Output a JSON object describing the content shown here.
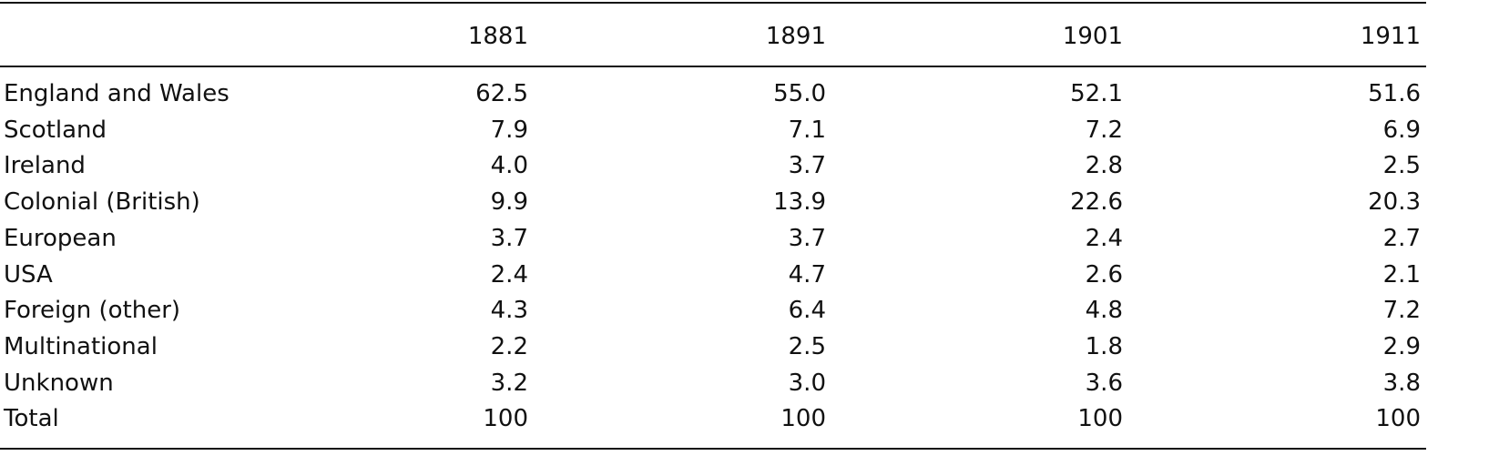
{
  "table": {
    "columns": [
      "1881",
      "1891",
      "1901",
      "1911"
    ],
    "rows": [
      {
        "label": "England and Wales",
        "values": [
          "62.5",
          "55.0",
          "52.1",
          "51.6"
        ]
      },
      {
        "label": "Scotland",
        "values": [
          "7.9",
          "7.1",
          "7.2",
          "6.9"
        ]
      },
      {
        "label": "Ireland",
        "values": [
          "4.0",
          "3.7",
          "2.8",
          "2.5"
        ]
      },
      {
        "label": "Colonial (British)",
        "values": [
          "9.9",
          "13.9",
          "22.6",
          "20.3"
        ]
      },
      {
        "label": "European",
        "values": [
          "3.7",
          "3.7",
          "2.4",
          "2.7"
        ]
      },
      {
        "label": "USA",
        "values": [
          "2.4",
          "4.7",
          "2.6",
          "2.1"
        ]
      },
      {
        "label": "Foreign (other)",
        "values": [
          "4.3",
          "6.4",
          "4.8",
          "7.2"
        ]
      },
      {
        "label": "Multinational",
        "values": [
          "2.2",
          "2.5",
          "1.8",
          "2.9"
        ]
      },
      {
        "label": "Unknown",
        "values": [
          "3.2",
          "3.0",
          "3.6",
          "3.8"
        ]
      },
      {
        "label": "Total",
        "values": [
          "100",
          "100",
          "100",
          "100"
        ]
      }
    ]
  }
}
